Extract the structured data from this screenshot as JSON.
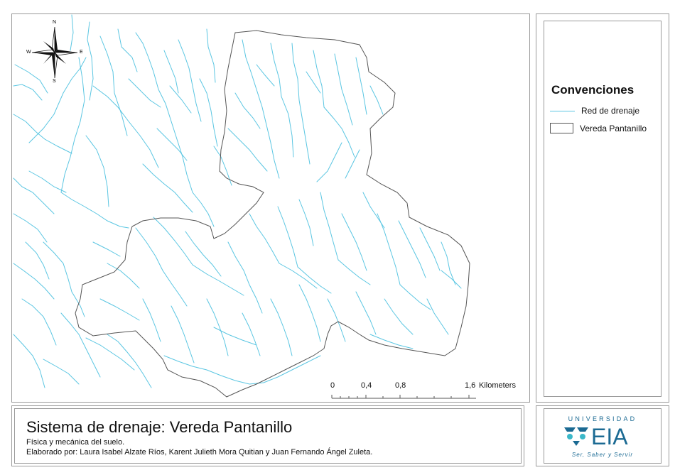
{
  "map": {
    "compass": {
      "n": "N",
      "s": "S",
      "e": "E",
      "w": "W"
    },
    "scalebar": {
      "ticks": [
        "0",
        "0,4",
        "0,8",
        "1,6"
      ],
      "unit": "Kilometers"
    },
    "colors": {
      "drainage": "#5bc6e2",
      "boundary": "#555555"
    }
  },
  "legend": {
    "title": "Convenciones",
    "items": [
      {
        "label": "Red de drenaje",
        "symbol": "line"
      },
      {
        "label": "Vereda Pantanillo",
        "symbol": "polygon"
      }
    ]
  },
  "title_block": {
    "title": "Sistema de drenaje: Vereda Pantanillo",
    "subtitle": "Física y mecánica del suelo.",
    "credits": "Elaborado por: Laura Isabel Alzate Ríos, Karent Julieth Mora Quitian y Juan Fernando Ángel Zuleta."
  },
  "logo": {
    "top": "UNIVERSIDAD",
    "name": "EIA",
    "tagline": "Ser, Saber y Servir",
    "color": "#1b6a93",
    "accent": "#3bb8c9"
  }
}
